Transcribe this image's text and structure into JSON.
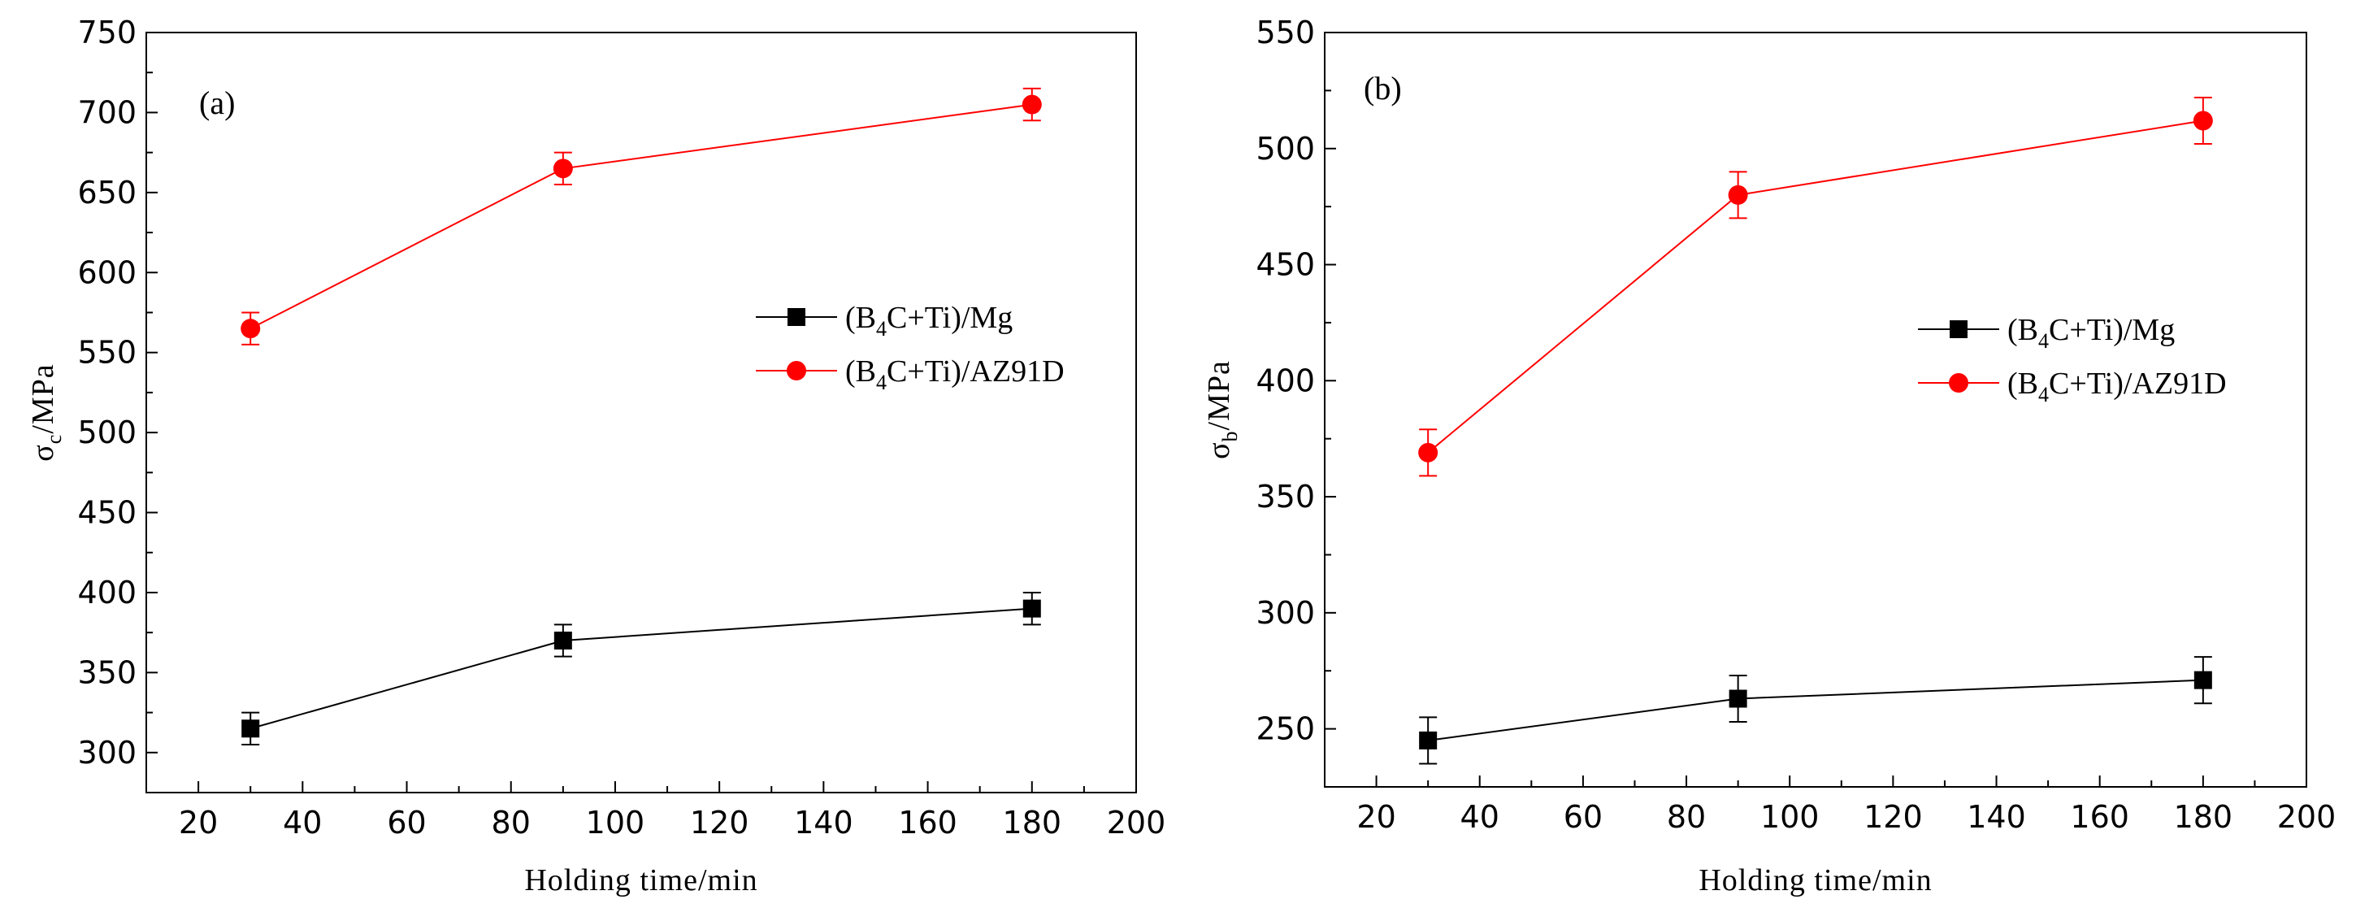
{
  "chart_data": [
    {
      "type": "line",
      "panel_label": "(a)",
      "xlabel": "Holding time/min",
      "ylabel": "σc/MPa",
      "ylabel_main": "σ",
      "ylabel_sub": "c",
      "ylabel_tail": "/MPa",
      "xlim": [
        10,
        200
      ],
      "ylim": [
        275,
        750
      ],
      "xticks": [
        20,
        40,
        60,
        80,
        100,
        120,
        140,
        160,
        180,
        200
      ],
      "yticks": [
        300,
        350,
        400,
        450,
        500,
        550,
        600,
        650,
        700,
        750
      ],
      "legend_position": "middle-right",
      "series": [
        {
          "name": "(B4C+Ti)/Mg",
          "name_parts": [
            "(B",
            "4",
            "C+Ti)/Mg"
          ],
          "color": "#000000",
          "marker": "square",
          "x": [
            30,
            90,
            180
          ],
          "y": [
            315,
            370,
            390
          ],
          "error": [
            10,
            10,
            10
          ]
        },
        {
          "name": "(B4C+Ti)/AZ91D",
          "name_parts": [
            "(B",
            "4",
            "C+Ti)/AZ91D"
          ],
          "color": "#ff0000",
          "marker": "circle",
          "x": [
            30,
            90,
            180
          ],
          "y": [
            565,
            665,
            705
          ],
          "error": [
            10,
            10,
            10
          ]
        }
      ]
    },
    {
      "type": "line",
      "panel_label": "(b)",
      "xlabel": "Holding time/min",
      "ylabel": "σb/MPa",
      "ylabel_main": "σ",
      "ylabel_sub": "b",
      "ylabel_tail": "/MPa",
      "xlim": [
        10,
        200
      ],
      "ylim": [
        225,
        550
      ],
      "xticks": [
        20,
        40,
        60,
        80,
        100,
        120,
        140,
        160,
        180,
        200
      ],
      "yticks": [
        250,
        300,
        350,
        400,
        450,
        500,
        550
      ],
      "legend_position": "middle-right",
      "series": [
        {
          "name": "(B4C+Ti)/Mg",
          "name_parts": [
            "(B",
            "4",
            "C+Ti)/Mg"
          ],
          "color": "#000000",
          "marker": "square",
          "x": [
            30,
            90,
            180
          ],
          "y": [
            245,
            263,
            271
          ],
          "error": [
            10,
            10,
            10
          ]
        },
        {
          "name": "(B4C+Ti)/AZ91D",
          "name_parts": [
            "(B",
            "4",
            "C+Ti)/AZ91D"
          ],
          "color": "#ff0000",
          "marker": "circle",
          "x": [
            30,
            90,
            180
          ],
          "y": [
            369,
            480,
            512
          ],
          "error": [
            10,
            10,
            10
          ]
        }
      ]
    }
  ]
}
